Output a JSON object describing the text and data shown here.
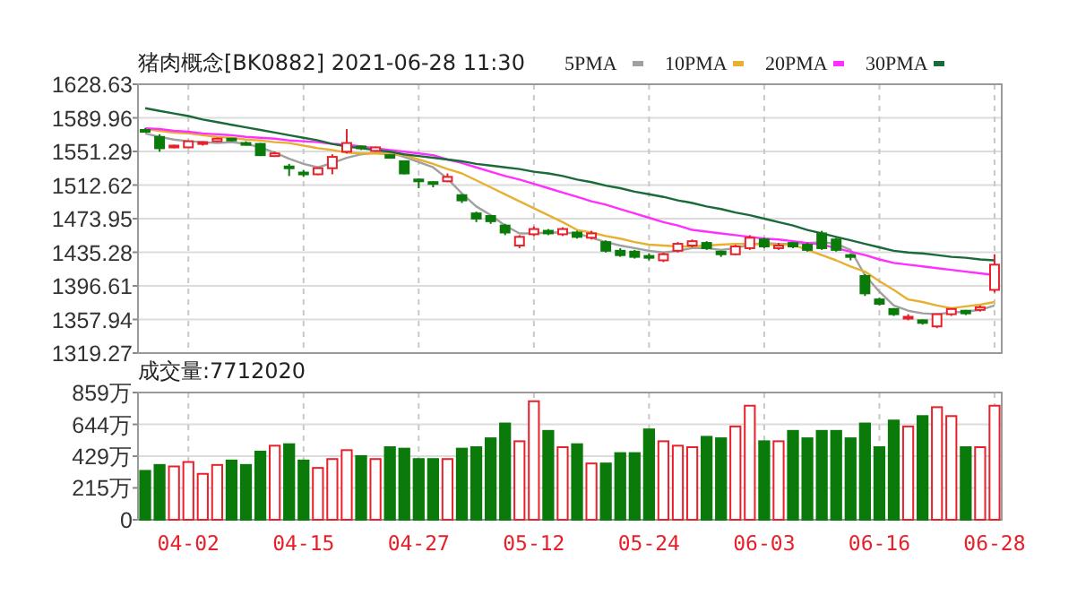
{
  "chart_data": [
    {
      "type": "candlestick",
      "title": "猪肉概念[BK0882] 2021-06-28 11:30",
      "grid": true,
      "legend": "top right",
      "tick_labels": "y",
      "categories": [
        null,
        null,
        null,
        null,
        null,
        null,
        null,
        null,
        null,
        null,
        null,
        null,
        null,
        null,
        null,
        null,
        null,
        null,
        null,
        null,
        null,
        null,
        null,
        null,
        null,
        null,
        null,
        null,
        null,
        null,
        null,
        null,
        null,
        null,
        null,
        null,
        null,
        null,
        null,
        null,
        null,
        null,
        null,
        null,
        null,
        null,
        null,
        null,
        null,
        null,
        null,
        null,
        null,
        null,
        null,
        null,
        null,
        null,
        null,
        null
      ],
      "ylim": [
        1319.27,
        1628.63
      ],
      "yticks": [
        1319.27,
        1357.94,
        1396.61,
        1435.28,
        1473.95,
        1512.62,
        1551.29,
        1589.96,
        1628.63
      ],
      "ohlc": [
        [
          1576,
          1578,
          1573,
          1574
        ],
        [
          1568,
          1571,
          1551,
          1555
        ],
        [
          1556,
          1559,
          1555,
          1558
        ],
        [
          1556,
          1564,
          1555,
          1563
        ],
        [
          1560,
          1563,
          1558,
          1562
        ],
        [
          1563,
          1567,
          1562,
          1566
        ],
        [
          1566,
          1567,
          1563,
          1564
        ],
        [
          1561,
          1563,
          1558,
          1559
        ],
        [
          1560,
          1561,
          1546,
          1547
        ],
        [
          1546,
          1551,
          1545,
          1549
        ],
        [
          1534,
          1537,
          1523,
          1532
        ],
        [
          1527,
          1530,
          1522,
          1526
        ],
        [
          1525,
          1533,
          1524,
          1532
        ],
        [
          1532,
          1548,
          1525,
          1545
        ],
        [
          1551,
          1577,
          1549,
          1561
        ],
        [
          1557,
          1558,
          1553,
          1555
        ],
        [
          1552,
          1557,
          1551,
          1556
        ],
        [
          1547,
          1548,
          1543,
          1544
        ],
        [
          1540,
          1541,
          1525,
          1526
        ],
        [
          1519,
          1520,
          1509,
          1518
        ],
        [
          1516,
          1517,
          1510,
          1514
        ],
        [
          1517,
          1526,
          1516,
          1522
        ],
        [
          1501,
          1502,
          1492,
          1495
        ],
        [
          1480,
          1482,
          1470,
          1474
        ],
        [
          1477,
          1478,
          1468,
          1471
        ],
        [
          1466,
          1468,
          1455,
          1458
        ],
        [
          1443,
          1455,
          1440,
          1453
        ],
        [
          1456,
          1465,
          1454,
          1462
        ],
        [
          1460,
          1462,
          1455,
          1457
        ],
        [
          1456,
          1464,
          1454,
          1462
        ],
        [
          1458,
          1460,
          1451,
          1453
        ],
        [
          1452,
          1460,
          1450,
          1457
        ],
        [
          1447,
          1449,
          1435,
          1437
        ],
        [
          1437,
          1440,
          1430,
          1432
        ],
        [
          1436,
          1438,
          1428,
          1430
        ],
        [
          1431,
          1434,
          1426,
          1430
        ],
        [
          1426,
          1435,
          1424,
          1433
        ],
        [
          1437,
          1447,
          1435,
          1445
        ],
        [
          1443,
          1450,
          1441,
          1448
        ],
        [
          1446,
          1448,
          1438,
          1440
        ],
        [
          1436,
          1437,
          1430,
          1433
        ],
        [
          1433,
          1444,
          1432,
          1442
        ],
        [
          1440,
          1455,
          1438,
          1452
        ],
        [
          1450,
          1452,
          1440,
          1442
        ],
        [
          1440,
          1446,
          1438,
          1443
        ],
        [
          1446,
          1447,
          1440,
          1442
        ],
        [
          1444,
          1446,
          1436,
          1438
        ],
        [
          1457,
          1460,
          1438,
          1440
        ],
        [
          1450,
          1452,
          1436,
          1438
        ],
        [
          1432,
          1434,
          1426,
          1430
        ],
        [
          1408,
          1410,
          1385,
          1388
        ],
        [
          1381,
          1383,
          1374,
          1376
        ],
        [
          1370,
          1371,
          1362,
          1364
        ],
        [
          1359,
          1364,
          1357,
          1361
        ],
        [
          1357,
          1358,
          1352,
          1354
        ],
        [
          1350,
          1365,
          1348,
          1364
        ],
        [
          1364,
          1371,
          1362,
          1370
        ],
        [
          1368,
          1369,
          1363,
          1365
        ],
        [
          1369,
          1374,
          1367,
          1372
        ],
        [
          1392,
          1433,
          1389,
          1421
        ]
      ],
      "colors": [
        "#0a7a0a",
        "#0a7a0a",
        "#e8202a",
        "#e8202a",
        "#e8202a",
        "#e8202a",
        "#0a7a0a",
        "#0a7a0a",
        "#0a7a0a",
        "#e8202a",
        "#0a7a0a",
        "#0a7a0a",
        "#e8202a",
        "#e8202a",
        "#e8202a",
        "#0a7a0a",
        "#e8202a",
        "#0a7a0a",
        "#0a7a0a",
        "#0a7a0a",
        "#0a7a0a",
        "#e8202a",
        "#0a7a0a",
        "#0a7a0a",
        "#0a7a0a",
        "#0a7a0a",
        "#e8202a",
        "#e8202a",
        "#0a7a0a",
        "#e8202a",
        "#0a7a0a",
        "#e8202a",
        "#0a7a0a",
        "#0a7a0a",
        "#0a7a0a",
        "#0a7a0a",
        "#e8202a",
        "#e8202a",
        "#e8202a",
        "#0a7a0a",
        "#0a7a0a",
        "#e8202a",
        "#e8202a",
        "#0a7a0a",
        "#e8202a",
        "#0a7a0a",
        "#0a7a0a",
        "#0a7a0a",
        "#0a7a0a",
        "#0a7a0a",
        "#0a7a0a",
        "#0a7a0a",
        "#0a7a0a",
        "#e8202a",
        "#0a7a0a",
        "#e8202a",
        "#e8202a",
        "#0a7a0a",
        "#e8202a",
        "#e8202a"
      ],
      "series": [
        {
          "name": "5PMA",
          "type": "line",
          "color": "#a0a0a0",
          "values": [
            1572,
            1568,
            1565,
            1563,
            1562,
            1561,
            1562,
            1560,
            1556,
            1550,
            1543,
            1537,
            1533,
            1538,
            1544,
            1548,
            1550,
            1550,
            1545,
            1539,
            1533,
            1520,
            1503,
            1488,
            1478,
            1466,
            1457,
            1457,
            1458,
            1458,
            1457,
            1452,
            1447,
            1443,
            1440,
            1437,
            1435,
            1437,
            1440,
            1440,
            1438,
            1440,
            1444,
            1446,
            1445,
            1445,
            1446,
            1447,
            1445,
            1438,
            1409,
            1390,
            1374,
            1368,
            1365,
            1364,
            1366,
            1367,
            1369,
            1374
          ]
        },
        {
          "name": "10PMA",
          "type": "line",
          "color": "#e8b030",
          "values": [
            1577,
            1575,
            1573,
            1572,
            1570,
            1568,
            1567,
            1565,
            1564,
            1562,
            1561,
            1558,
            1555,
            1553,
            1550,
            1549,
            1549,
            1548,
            1547,
            1542,
            1537,
            1531,
            1526,
            1518,
            1510,
            1502,
            1494,
            1486,
            1478,
            1470,
            1461,
            1458,
            1454,
            1451,
            1447,
            1444,
            1443,
            1442,
            1442,
            1443,
            1444,
            1445,
            1445,
            1444,
            1444,
            1444,
            1438,
            1432,
            1426,
            1419,
            1413,
            1402,
            1392,
            1381,
            1378,
            1374,
            1371,
            1373,
            1375,
            1378
          ]
        },
        {
          "name": "20PMA",
          "type": "line",
          "color": "#ff30ff",
          "values": [
            1578,
            1577,
            1575,
            1574,
            1572,
            1571,
            1570,
            1568,
            1567,
            1566,
            1564,
            1563,
            1562,
            1560,
            1559,
            1557,
            1555,
            1553,
            1551,
            1549,
            1547,
            1542,
            1538,
            1533,
            1528,
            1523,
            1519,
            1514,
            1509,
            1504,
            1499,
            1494,
            1490,
            1485,
            1480,
            1475,
            1470,
            1466,
            1461,
            1459,
            1457,
            1455,
            1453,
            1451,
            1450,
            1448,
            1446,
            1444,
            1440,
            1436,
            1432,
            1427,
            1423,
            1421,
            1419,
            1417,
            1415,
            1413,
            1411,
            1409
          ]
        },
        {
          "name": "30PMA",
          "type": "line",
          "color": "#1a6a3a",
          "values": [
            1601,
            1598,
            1595,
            1592,
            1588,
            1585,
            1582,
            1579,
            1576,
            1573,
            1570,
            1567,
            1564,
            1560,
            1557,
            1555,
            1553,
            1551,
            1548,
            1546,
            1544,
            1542,
            1540,
            1537,
            1535,
            1533,
            1531,
            1528,
            1526,
            1523,
            1519,
            1516,
            1512,
            1509,
            1505,
            1502,
            1499,
            1495,
            1492,
            1488,
            1485,
            1481,
            1478,
            1474,
            1470,
            1466,
            1461,
            1457,
            1453,
            1449,
            1445,
            1441,
            1437,
            1435,
            1434,
            1432,
            1430,
            1429,
            1427,
            1426
          ]
        }
      ]
    },
    {
      "type": "bar",
      "title": "成交量:7712020",
      "grid": true,
      "categories": [
        null,
        null,
        null,
        "04-02",
        null,
        null,
        null,
        null,
        null,
        null,
        null,
        "04-15",
        null,
        null,
        null,
        null,
        null,
        null,
        null,
        "04-27",
        null,
        null,
        null,
        null,
        null,
        null,
        null,
        "05-12",
        null,
        null,
        null,
        null,
        null,
        null,
        null,
        "05-24",
        null,
        null,
        null,
        null,
        null,
        null,
        null,
        "06-03",
        null,
        null,
        null,
        null,
        null,
        null,
        null,
        "06-16",
        null,
        null,
        null,
        null,
        null,
        null,
        null,
        "06-28"
      ],
      "ylim": [
        0,
        859
      ],
      "yticks": [
        0,
        {
          "value": 215,
          "label": "215万"
        },
        {
          "value": 429,
          "label": "429万"
        },
        {
          "value": 644,
          "label": "644万"
        },
        {
          "value": 859,
          "label": "859万"
        }
      ],
      "values": [
        330,
        370,
        360,
        390,
        310,
        370,
        400,
        370,
        460,
        500,
        510,
        400,
        350,
        410,
        470,
        430,
        410,
        490,
        480,
        410,
        410,
        410,
        480,
        490,
        550,
        650,
        530,
        800,
        600,
        490,
        510,
        380,
        380,
        450,
        450,
        610,
        530,
        500,
        490,
        560,
        550,
        630,
        770,
        530,
        530,
        600,
        550,
        600,
        600,
        550,
        650,
        490,
        670,
        630,
        700,
        760,
        700,
        490,
        490,
        770
      ],
      "colors": [
        "#0a7a0a",
        "#0a7a0a",
        "#e8202a",
        "#e8202a",
        "#e8202a",
        "#e8202a",
        "#0a7a0a",
        "#0a7a0a",
        "#0a7a0a",
        "#e8202a",
        "#0a7a0a",
        "#0a7a0a",
        "#e8202a",
        "#e8202a",
        "#e8202a",
        "#0a7a0a",
        "#e8202a",
        "#0a7a0a",
        "#0a7a0a",
        "#0a7a0a",
        "#0a7a0a",
        "#e8202a",
        "#0a7a0a",
        "#0a7a0a",
        "#0a7a0a",
        "#0a7a0a",
        "#e8202a",
        "#e8202a",
        "#0a7a0a",
        "#e8202a",
        "#0a7a0a",
        "#e8202a",
        "#0a7a0a",
        "#0a7a0a",
        "#0a7a0a",
        "#0a7a0a",
        "#e8202a",
        "#e8202a",
        "#e8202a",
        "#0a7a0a",
        "#0a7a0a",
        "#e8202a",
        "#e8202a",
        "#0a7a0a",
        "#e8202a",
        "#0a7a0a",
        "#0a7a0a",
        "#0a7a0a",
        "#0a7a0a",
        "#0a7a0a",
        "#0a7a0a",
        "#0a7a0a",
        "#0a7a0a",
        "#e8202a",
        "#0a7a0a",
        "#e8202a",
        "#e8202a",
        "#0a7a0a",
        "#e8202a",
        "#e8202a"
      ]
    }
  ]
}
